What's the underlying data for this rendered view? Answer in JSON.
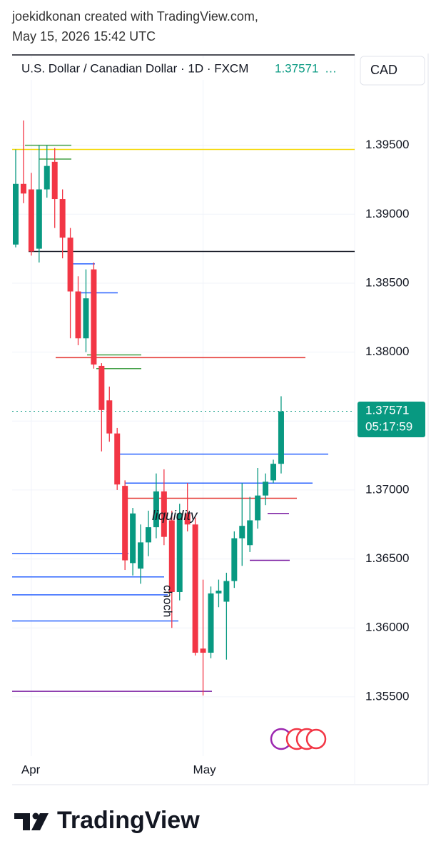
{
  "header": {
    "credit": "joekidkonan created with TradingView.com,",
    "timestamp": "May 15, 2026 15:42 UTC"
  },
  "chart_data": {
    "type": "candlestick",
    "title": "U.S. Dollar / Canadian Dollar · 1D · FXCM",
    "currency": "CAD",
    "last_price": {
      "value": 1.37571,
      "label": "1.37571"
    },
    "countdown": "05:17:59",
    "categories": [
      null,
      null,
      "Apr",
      null,
      null,
      null,
      null,
      null,
      null,
      null,
      null,
      null,
      null,
      null,
      null,
      null,
      null,
      null,
      null,
      null,
      null,
      null,
      null,
      null,
      "May",
      null,
      null,
      null,
      null,
      null,
      null,
      null,
      null,
      null,
      null
    ],
    "open": [
      1.3878,
      1.3922,
      1.3918,
      1.3875,
      1.3918,
      1.3938,
      1.3911,
      1.3883,
      1.3844,
      1.381,
      1.386,
      1.379,
      1.3765,
      1.3741,
      1.3703,
      1.3647,
      1.3643,
      1.3662,
      1.3673,
      1.3699,
      1.3678,
      1.3626,
      1.3683,
      1.3675,
      1.3585,
      1.3582,
      1.3625,
      1.3619,
      1.3634,
      1.3665,
      1.366,
      1.3678,
      1.3696,
      1.3707,
      1.3719
    ],
    "high": [
      1.3947,
      1.3968,
      1.393,
      1.395,
      1.395,
      1.3948,
      1.3918,
      1.389,
      1.3855,
      1.386,
      1.3865,
      1.3792,
      1.3775,
      1.3745,
      1.3707,
      1.3687,
      1.3675,
      1.3685,
      1.3712,
      1.3715,
      1.3685,
      1.369,
      1.3705,
      1.368,
      1.3635,
      1.363,
      1.3635,
      1.364,
      1.367,
      1.3705,
      1.3695,
      1.3716,
      1.3712,
      1.3722,
      1.3768
    ],
    "low": [
      1.3876,
      1.3908,
      1.387,
      1.3865,
      1.3912,
      1.389,
      1.3868,
      1.381,
      1.3805,
      1.38,
      1.3788,
      1.3728,
      1.3735,
      1.37,
      1.3642,
      1.3638,
      1.3632,
      1.3652,
      1.3665,
      1.366,
      1.36,
      1.362,
      1.367,
      1.358,
      1.3551,
      1.3578,
      1.3615,
      1.3577,
      1.3629,
      1.3645,
      1.3655,
      1.3672,
      1.3689,
      1.3705,
      1.3712
    ],
    "close": [
      1.3922,
      1.3915,
      1.3873,
      1.3918,
      1.3935,
      1.3911,
      1.3883,
      1.3844,
      1.381,
      1.3839,
      1.3791,
      1.3758,
      1.3741,
      1.3704,
      1.3649,
      1.3683,
      1.3662,
      1.3673,
      1.3699,
      1.3666,
      1.3626,
      1.3683,
      1.3675,
      1.3582,
      1.3582,
      1.3625,
      1.3627,
      1.3634,
      1.3665,
      1.3674,
      1.3678,
      1.3696,
      1.3706,
      1.3719,
      1.3757
    ],
    "up_color": "#089981",
    "down_color": "#f23645",
    "ylim": [
      1.3507,
      1.4015
    ],
    "yticks": [
      {
        "value": 1.395,
        "label": "1.39500"
      },
      {
        "value": 1.39,
        "label": "1.39000"
      },
      {
        "value": 1.385,
        "label": "1.38500"
      },
      {
        "value": 1.38,
        "label": "1.38000"
      },
      {
        "value": 1.375,
        "label": "1.37500"
      },
      {
        "value": 1.37,
        "label": "1.37000"
      },
      {
        "value": 1.365,
        "label": "1.36500"
      },
      {
        "value": 1.36,
        "label": "1.36000"
      },
      {
        "value": 1.355,
        "label": "1.35500"
      }
    ],
    "levels": [
      {
        "value": 1.3947,
        "color": "#f5d90a"
      },
      {
        "value": 1.3873,
        "color": "#131722"
      },
      {
        "value": 1.3796,
        "color": "#e53935"
      },
      {
        "value": 1.3726,
        "color": "#2962ff"
      },
      {
        "value": 1.3705,
        "color": "#2962ff"
      },
      {
        "value": 1.3694,
        "color": "#e53935"
      },
      {
        "value": 1.3683,
        "color": "#7b1fa2"
      },
      {
        "value": 1.3654,
        "color": "#2962ff"
      },
      {
        "value": 1.3649,
        "color": "#7b1fa2"
      },
      {
        "value": 1.3637,
        "color": "#2962ff"
      },
      {
        "value": 1.3624,
        "color": "#2962ff"
      },
      {
        "value": 1.3605,
        "color": "#2962ff"
      },
      {
        "value": 1.3554,
        "color": "#7b1fa2"
      },
      {
        "value": 1.395,
        "color": "#43a047"
      },
      {
        "value": 1.394,
        "color": "#43a047"
      },
      {
        "value": 1.3798,
        "color": "#43a047"
      },
      {
        "value": 1.3788,
        "color": "#43a047"
      },
      {
        "value": 1.3864,
        "color": "#2962ff"
      },
      {
        "value": 1.3843,
        "color": "#2962ff"
      }
    ],
    "annotations": [
      "liquidity",
      "choch"
    ]
  },
  "footer": {
    "brand": "TradingView"
  }
}
